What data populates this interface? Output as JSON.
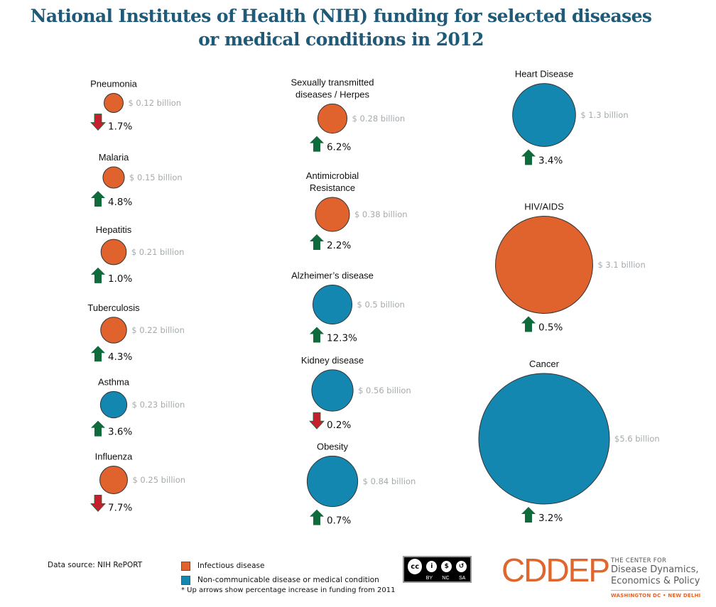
{
  "title": {
    "line1": "National Institutes of Health (NIH) funding for selected diseases",
    "line2": "or medical conditions in 2012"
  },
  "colors": {
    "infectious": "#e0622d",
    "non_communicable": "#1487b0",
    "arrow_up": "#0f6b3c",
    "arrow_down": "#c4202e",
    "amount_text": "#a4aaad",
    "title": "#1f5a78",
    "brand": "#e0662e"
  },
  "chart_data": {
    "type": "bubble",
    "title": "National Institutes of Health (NIH) funding for selected diseases or medical conditions in 2012",
    "value_unit": "billion USD",
    "change_unit": "percent change in funding from 2011",
    "categories_legend": [
      {
        "key": "infectious",
        "label": "Infectious disease"
      },
      {
        "key": "non_communicable",
        "label": "Non-communicable disease or medical condition"
      }
    ],
    "items": [
      {
        "name": "Pneumonia",
        "label_lines": [
          "Pneumonia"
        ],
        "value": 0.12,
        "amount_label": "$ 0.12 billion",
        "change": 1.7,
        "change_label": "1.7%",
        "direction": "down",
        "category": "infectious",
        "column": 0
      },
      {
        "name": "Malaria",
        "label_lines": [
          "Malaria"
        ],
        "value": 0.15,
        "amount_label": "$ 0.15 billion",
        "change": 4.8,
        "change_label": "4.8%",
        "direction": "up",
        "category": "infectious",
        "column": 0
      },
      {
        "name": "Hepatitis",
        "label_lines": [
          "Hepatitis"
        ],
        "value": 0.21,
        "amount_label": "$ 0.21 billion",
        "change": 1.0,
        "change_label": "1.0%",
        "direction": "up",
        "category": "infectious",
        "column": 0
      },
      {
        "name": "Tuberculosis",
        "label_lines": [
          "Tuberculosis"
        ],
        "value": 0.22,
        "amount_label": "$ 0.22 billion",
        "change": 4.3,
        "change_label": "4.3%",
        "direction": "up",
        "category": "infectious",
        "column": 0
      },
      {
        "name": "Asthma",
        "label_lines": [
          "Asthma"
        ],
        "value": 0.23,
        "amount_label": "$ 0.23 billion",
        "change": 3.6,
        "change_label": "3.6%",
        "direction": "up",
        "category": "non_communicable",
        "column": 0
      },
      {
        "name": "Influenza",
        "label_lines": [
          "Influenza"
        ],
        "value": 0.25,
        "amount_label": "$ 0.25 billion",
        "change": 7.7,
        "change_label": "7.7%",
        "direction": "down",
        "category": "infectious",
        "column": 0
      },
      {
        "name": "Sexually transmitted diseases / Herpes",
        "label_lines": [
          "Sexually transmitted",
          "diseases / Herpes"
        ],
        "value": 0.28,
        "amount_label": "$ 0.28 billion",
        "change": 6.2,
        "change_label": "6.2%",
        "direction": "up",
        "category": "infectious",
        "column": 1
      },
      {
        "name": "Antimicrobial Resistance",
        "label_lines": [
          "Antimicrobial",
          "Resistance"
        ],
        "value": 0.38,
        "amount_label": "$ 0.38 billion",
        "change": 2.2,
        "change_label": "2.2%",
        "direction": "up",
        "category": "infectious",
        "column": 1
      },
      {
        "name": "Alzheimer’s disease",
        "label_lines": [
          "Alzheimer’s disease"
        ],
        "value": 0.5,
        "amount_label": "$ 0.5 billion",
        "change": 12.3,
        "change_label": "12.3%",
        "direction": "up",
        "category": "non_communicable",
        "column": 1
      },
      {
        "name": "Kidney disease",
        "label_lines": [
          "Kidney disease"
        ],
        "value": 0.56,
        "amount_label": "$ 0.56 billion",
        "change": 0.2,
        "change_label": "0.2%",
        "direction": "down",
        "category": "non_communicable",
        "column": 1
      },
      {
        "name": "Obesity",
        "label_lines": [
          "Obesity"
        ],
        "value": 0.84,
        "amount_label": "$ 0.84 billion",
        "change": 0.7,
        "change_label": "0.7%",
        "direction": "up",
        "category": "non_communicable",
        "column": 1
      },
      {
        "name": "Heart Disease",
        "label_lines": [
          "Heart Disease"
        ],
        "value": 1.3,
        "amount_label": "$ 1.3 billion",
        "change": 3.4,
        "change_label": "3.4%",
        "direction": "up",
        "category": "non_communicable",
        "column": 2
      },
      {
        "name": "HIV/AIDS",
        "label_lines": [
          "HIV/AIDS"
        ],
        "value": 3.1,
        "amount_label": "$ 3.1  billion",
        "change": 0.5,
        "change_label": "0.5%",
        "direction": "up",
        "category": "infectious",
        "column": 2
      },
      {
        "name": "Cancer",
        "label_lines": [
          "Cancer"
        ],
        "value": 5.6,
        "amount_label": "$5.6 billion",
        "change": 3.2,
        "change_label": "3.2%",
        "direction": "up",
        "category": "non_communicable",
        "column": 2
      }
    ]
  },
  "footer": {
    "source": "Data source: NIH RePORT",
    "legend_infectious": "Infectious disease",
    "legend_noncommunicable": "Non-communicable disease or medical condition",
    "note": "* Up arrows show percentage increase in funding from 2011",
    "license": {
      "cc": "cc",
      "by": "BY",
      "nc": "NC",
      "sa": "SA"
    },
    "logo": {
      "mark": "CDDEP",
      "small": "THE CENTER FOR",
      "line1": "Disease Dynamics,",
      "line2": "Economics & Policy",
      "cities": "WASHINGTON DC • NEW DELHI"
    }
  }
}
